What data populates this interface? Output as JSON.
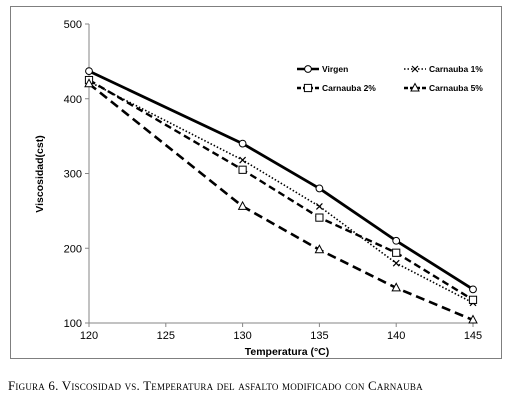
{
  "chart_data": {
    "type": "line",
    "xlabel": "Temperatura (°C)",
    "ylabel": "Viscosidad(cst)",
    "xlim": [
      120,
      145
    ],
    "ylim": [
      100,
      500
    ],
    "xticks": [
      "120",
      "125",
      "130",
      "135",
      "140",
      "145"
    ],
    "yticks": [
      "100",
      "200",
      "300",
      "400",
      "500"
    ],
    "grid": false,
    "legend_position": "top-right",
    "series": [
      {
        "name": "Virgen",
        "style": "solid",
        "marker": "circle",
        "x": [
          120,
          130,
          135,
          140,
          145
        ],
        "y": [
          437,
          340,
          280,
          210,
          145
        ]
      },
      {
        "name": "Carnauba 1%",
        "style": "dotted",
        "marker": "x",
        "x": [
          120,
          130,
          135,
          140,
          145
        ],
        "y": [
          423,
          318,
          256,
          180,
          127
        ]
      },
      {
        "name": "Carnauba 2%",
        "style": "dashed",
        "marker": "square",
        "x": [
          120,
          130,
          135,
          140,
          145
        ],
        "y": [
          425,
          305,
          241,
          194,
          131
        ]
      },
      {
        "name": "Carnauba 5%",
        "style": "dashed-long",
        "marker": "triangle",
        "x": [
          120,
          130,
          135,
          140,
          145
        ],
        "y": [
          420,
          256,
          198,
          147,
          104
        ]
      }
    ]
  },
  "caption": {
    "label": "Figura 6.",
    "text": "Viscosidad vs. Temperatura del asfalto modificado con Carnauba"
  }
}
